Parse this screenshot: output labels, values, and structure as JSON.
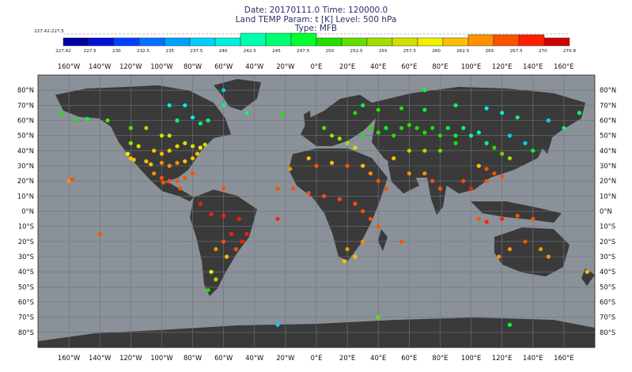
{
  "title": {
    "line1": "Date: 20170111.0 Time: 120000.0",
    "line2": "Land TEMP Param: t [K] Level: 500 hPa",
    "line3": "Type: MFB"
  },
  "colorbar": {
    "min_label": "227.42-227.5",
    "ticks": [
      "227.42",
      "227.5",
      "230",
      "232.5",
      "235",
      "237.5",
      "240",
      "242.5",
      "245",
      "247.5",
      "250",
      "252.5",
      "255",
      "257.5",
      "260",
      "262.5",
      "265",
      "267.5",
      "270",
      "270.8"
    ],
    "colors": [
      "#0000a0",
      "#0010d0",
      "#0040ff",
      "#0070ff",
      "#00a0ff",
      "#00d0ff",
      "#00f0e0",
      "#00ffb0",
      "#00ff70",
      "#00ff30",
      "#20e000",
      "#60e000",
      "#a0e000",
      "#d0e000",
      "#f0f000",
      "#ffc000",
      "#ff9000",
      "#ff5000",
      "#ff2000",
      "#d00000"
    ]
  },
  "axes": {
    "lon_labels": [
      "160°W",
      "140°W",
      "120°W",
      "100°W",
      "80°W",
      "60°W",
      "40°W",
      "20°W",
      "0°E",
      "20°E",
      "40°E",
      "60°E",
      "80°E",
      "100°E",
      "120°E",
      "140°E",
      "160°E"
    ],
    "lat_labels": [
      "80°N",
      "70°N",
      "60°N",
      "50°N",
      "40°N",
      "30°N",
      "20°N",
      "10°N",
      "0°N",
      "10°S",
      "20°S",
      "30°S",
      "40°S",
      "50°S",
      "60°S",
      "70°S",
      "80°S"
    ]
  },
  "style": {
    "ocean": "#8a9198",
    "land": "#3a3a3a",
    "grid": "#6f757b"
  },
  "chart_data": {
    "type": "scatter",
    "xlabel": "",
    "ylabel": "",
    "xlim": [
      -180,
      180
    ],
    "ylim": [
      -90,
      90
    ],
    "grid": true,
    "points": [
      [
        -165,
        65,
        250
      ],
      [
        -155,
        60,
        250
      ],
      [
        -148,
        61,
        248
      ],
      [
        -135,
        60,
        252
      ],
      [
        -120,
        55,
        252
      ],
      [
        -110,
        55,
        255
      ],
      [
        -100,
        50,
        257
      ],
      [
        -95,
        50,
        257
      ],
      [
        -120,
        45,
        255
      ],
      [
        -115,
        43,
        257
      ],
      [
        -105,
        40,
        260
      ],
      [
        -100,
        38,
        260
      ],
      [
        -95,
        40,
        260
      ],
      [
        -90,
        43,
        257
      ],
      [
        -85,
        45,
        257
      ],
      [
        -80,
        43,
        257
      ],
      [
        -75,
        42,
        258
      ],
      [
        -72,
        44,
        256
      ],
      [
        -120,
        35,
        260
      ],
      [
        -110,
        33,
        262
      ],
      [
        -100,
        32,
        263
      ],
      [
        -95,
        30,
        264
      ],
      [
        -90,
        32,
        264
      ],
      [
        -85,
        33,
        262
      ],
      [
        -80,
        35,
        262
      ],
      [
        -77,
        38,
        262
      ],
      [
        -105,
        25,
        264
      ],
      [
        -100,
        22,
        265
      ],
      [
        -95,
        20,
        265
      ],
      [
        -90,
        20,
        265
      ],
      [
        -85,
        22,
        265
      ],
      [
        -80,
        25,
        265
      ],
      [
        -90,
        60,
        245
      ],
      [
        -80,
        62,
        242
      ],
      [
        -70,
        60,
        245
      ],
      [
        -75,
        58,
        245
      ],
      [
        -85,
        70,
        242
      ],
      [
        -95,
        70,
        242
      ],
      [
        -60,
        70,
        245
      ],
      [
        -45,
        65,
        245
      ],
      [
        -22,
        64,
        250
      ],
      [
        -75,
        5,
        267
      ],
      [
        -68,
        -2,
        267
      ],
      [
        -60,
        -3,
        268
      ],
      [
        -50,
        -5,
        268
      ],
      [
        -45,
        -15,
        268
      ],
      [
        -55,
        -15,
        268
      ],
      [
        -60,
        -20,
        266
      ],
      [
        -65,
        -25,
        264
      ],
      [
        -58,
        -30,
        262
      ],
      [
        -52,
        -25,
        265
      ],
      [
        -48,
        -20,
        267
      ],
      [
        -68,
        -40,
        258
      ],
      [
        -65,
        -45,
        255
      ],
      [
        -70,
        -52,
        250
      ],
      [
        -5,
        35,
        262
      ],
      [
        0,
        30,
        265
      ],
      [
        10,
        32,
        262
      ],
      [
        20,
        30,
        265
      ],
      [
        30,
        30,
        262
      ],
      [
        35,
        25,
        263
      ],
      [
        40,
        20,
        265
      ],
      [
        45,
        15,
        265
      ],
      [
        -15,
        15,
        265
      ],
      [
        -5,
        12,
        265
      ],
      [
        5,
        10,
        266
      ],
      [
        15,
        8,
        266
      ],
      [
        25,
        5,
        266
      ],
      [
        30,
        0,
        266
      ],
      [
        35,
        -5,
        265
      ],
      [
        40,
        -10,
        265
      ],
      [
        30,
        -20,
        264
      ],
      [
        20,
        -25,
        263
      ],
      [
        25,
        -30,
        262
      ],
      [
        18,
        -33,
        262
      ],
      [
        5,
        55,
        252
      ],
      [
        10,
        50,
        254
      ],
      [
        15,
        48,
        255
      ],
      [
        20,
        45,
        255
      ],
      [
        25,
        42,
        257
      ],
      [
        30,
        50,
        250
      ],
      [
        35,
        55,
        250
      ],
      [
        40,
        52,
        250
      ],
      [
        45,
        55,
        248
      ],
      [
        50,
        50,
        250
      ],
      [
        55,
        55,
        250
      ],
      [
        60,
        57,
        250
      ],
      [
        65,
        55,
        250
      ],
      [
        70,
        52,
        250
      ],
      [
        75,
        55,
        250
      ],
      [
        80,
        50,
        250
      ],
      [
        85,
        55,
        248
      ],
      [
        90,
        50,
        247
      ],
      [
        95,
        55,
        245
      ],
      [
        100,
        50,
        243
      ],
      [
        105,
        52,
        243
      ],
      [
        110,
        45,
        245
      ],
      [
        115,
        42,
        250
      ],
      [
        120,
        38,
        252
      ],
      [
        125,
        35,
        255
      ],
      [
        105,
        30,
        262
      ],
      [
        110,
        28,
        265
      ],
      [
        115,
        25,
        265
      ],
      [
        120,
        23,
        265
      ],
      [
        110,
        20,
        265
      ],
      [
        100,
        15,
        267
      ],
      [
        95,
        20,
        266
      ],
      [
        80,
        15,
        266
      ],
      [
        75,
        20,
        265
      ],
      [
        70,
        25,
        264
      ],
      [
        60,
        25,
        264
      ],
      [
        50,
        35,
        260
      ],
      [
        60,
        40,
        255
      ],
      [
        70,
        40,
        255
      ],
      [
        80,
        40,
        252
      ],
      [
        90,
        45,
        250
      ],
      [
        125,
        50,
        240
      ],
      [
        135,
        45,
        240
      ],
      [
        140,
        40,
        248
      ],
      [
        130,
        62,
        245
      ],
      [
        120,
        65,
        242
      ],
      [
        110,
        68,
        242
      ],
      [
        90,
        70,
        245
      ],
      [
        70,
        67,
        248
      ],
      [
        55,
        68,
        250
      ],
      [
        40,
        67,
        250
      ],
      [
        30,
        70,
        248
      ],
      [
        25,
        65,
        250
      ],
      [
        150,
        60,
        240
      ],
      [
        160,
        55,
        245
      ],
      [
        170,
        65,
        245
      ],
      [
        105,
        -5,
        266
      ],
      [
        110,
        -7,
        267
      ],
      [
        120,
        -5,
        267
      ],
      [
        130,
        -3,
        266
      ],
      [
        140,
        -5,
        266
      ],
      [
        135,
        -20,
        265
      ],
      [
        145,
        -25,
        264
      ],
      [
        150,
        -30,
        263
      ],
      [
        125,
        -25,
        264
      ],
      [
        118,
        -30,
        263
      ],
      [
        175,
        -40,
        262
      ],
      [
        -140,
        -15,
        266
      ],
      [
        -160,
        20,
        264
      ],
      [
        -158,
        21,
        265
      ],
      [
        -25,
        -75,
        240
      ],
      [
        125,
        -75,
        248
      ],
      [
        40,
        -70,
        252
      ],
      [
        -25,
        -5,
        267
      ],
      [
        55,
        -20,
        266
      ],
      [
        -60,
        80,
        240
      ],
      [
        70,
        80,
        248
      ],
      [
        -17,
        28,
        263
      ],
      [
        -25,
        15,
        265
      ],
      [
        -60,
        15,
        266
      ],
      [
        -88,
        15,
        266
      ],
      [
        -99,
        19,
        265
      ],
      [
        -107,
        31,
        262
      ],
      [
        -118,
        34,
        260
      ],
      [
        -122,
        38,
        258
      ]
    ]
  }
}
